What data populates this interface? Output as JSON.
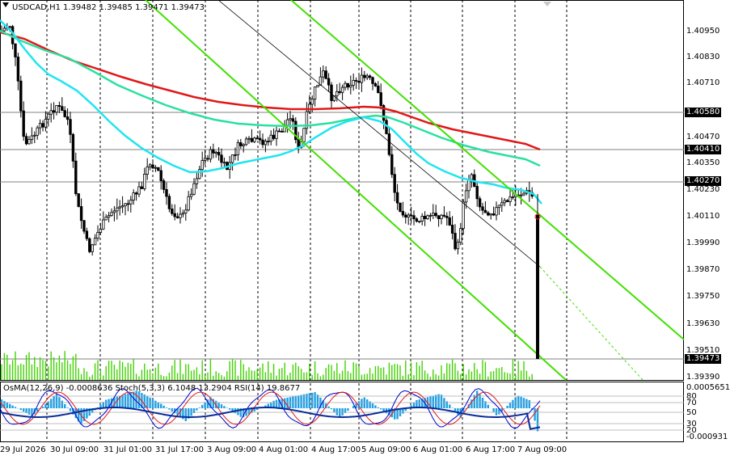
{
  "header": {
    "symbol": "USDCAD,H1",
    "ohlc": "1.39482 1.39485 1.39471 1.39473"
  },
  "price_axis": {
    "labels": [
      "1.40950",
      "1.40830",
      "1.40710",
      "1.40470",
      "1.40350",
      "1.40230",
      "1.40110",
      "1.39990",
      "1.39870",
      "1.39750",
      "1.39630",
      "1.39510",
      "1.39390"
    ],
    "tags": [
      "1.40580",
      "1.40410",
      "1.40270",
      "1.39473"
    ]
  },
  "indicator": {
    "title": "OsMA(12,26,9) -0.0008636  Stoch(5,3,3) 6.1048 13.2904  RSI(14) 19.8677",
    "axis_labels": [
      "0.0005651",
      "80",
      "70",
      "50",
      "30",
      "20",
      "-0.000931"
    ]
  },
  "time_axis": {
    "labels": [
      "29 Jul 2026",
      "30 Jul 09:00",
      "31 Jul 01:00",
      "31 Jul 17:00",
      "3 Aug 09:00",
      "4 Aug 01:00",
      "4 Aug 17:00",
      "5 Aug 09:00",
      "6 Aug 01:00",
      "6 Aug 17:00",
      "7 Aug 09:00"
    ]
  },
  "colors": {
    "ma_fast": "#1fe5f0",
    "ma_mid": "#2ae0a0",
    "ma_slow": "#e01818",
    "channel": "#41e000",
    "osma": "#1ea0e6",
    "volume": "#41d200"
  }
}
